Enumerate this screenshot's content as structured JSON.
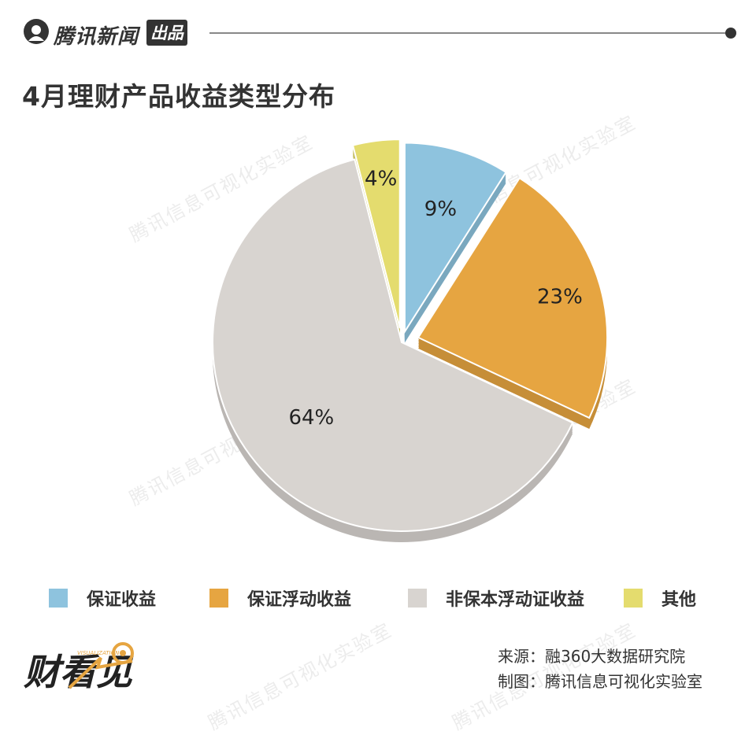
{
  "brand": {
    "name": "腾讯新闻",
    "tag": "出品"
  },
  "title": "4月理财产品收益类型分布",
  "watermark_text": "腾讯信息可视化实验室",
  "colors": {
    "blue": "#8ec3de",
    "orange": "#e6a541",
    "gray": "#d8d4d0",
    "yellow": "#e4dc6e",
    "text": "#333333"
  },
  "chart_data": {
    "type": "pie",
    "start_angle_deg": 0,
    "direction": "clockwise",
    "exploded": true,
    "slices": [
      {
        "label": "保证收益",
        "value": 9,
        "data_label": "9%",
        "color": "#8ec3de"
      },
      {
        "label": "保证浮动收益",
        "value": 23,
        "data_label": "23%",
        "color": "#e6a541"
      },
      {
        "label": "非保本浮动证收益",
        "value": 64,
        "data_label": "64%",
        "color": "#d8d4d0"
      },
      {
        "label": "其他",
        "value": 4,
        "data_label": "4%",
        "color": "#e4dc6e"
      }
    ],
    "legend_position": "bottom"
  },
  "legend": [
    {
      "label": "保证收益",
      "color": "#8ec3de"
    },
    {
      "label": "保证浮动收益",
      "color": "#e6a541"
    },
    {
      "label": "非保本浮动证收益",
      "color": "#d8d4d0"
    },
    {
      "label": "其他",
      "color": "#e4dc6e"
    }
  ],
  "footer": {
    "logo_text": "财看见",
    "logo_subtext": "VISUALIZATION",
    "source": "来源：融360大数据研究院",
    "credit": "制图：腾讯信息可视化实验室"
  }
}
